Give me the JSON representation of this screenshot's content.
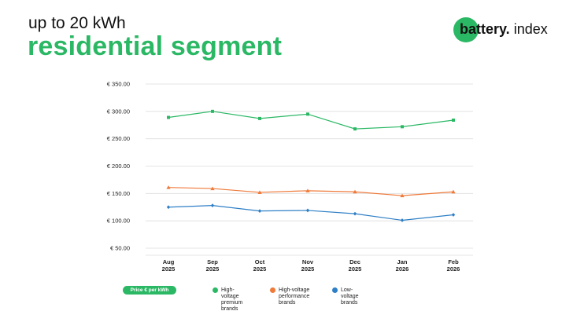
{
  "header": {
    "subtitle": "up to 20 kWh",
    "title": "residential segment"
  },
  "logo": {
    "brand_bold": "battery.",
    "brand_rest": " index"
  },
  "colors": {
    "accent": "#2bb865",
    "premium": "#2bb865",
    "performance": "#ef7a3a",
    "low": "#2e7fc6",
    "grid": "#dddddd"
  },
  "chart_data": {
    "type": "line",
    "categories": [
      "Aug\n2025",
      "Sep\n2025",
      "Oct\n2025",
      "Nov\n2025",
      "Dec\n2025",
      "Jan\n2026",
      "Feb\n2026"
    ],
    "y_ticks": [
      "€ 50.00",
      "€ 100.00",
      "€ 150.00",
      "€ 200.00",
      "€ 250.00",
      "€ 300.00",
      "€ 350.00"
    ],
    "y_tick_values": [
      50,
      100,
      150,
      200,
      250,
      300,
      350
    ],
    "ylim": [
      50,
      350
    ],
    "grid": true,
    "series": [
      {
        "name": "High-voltage premium brands",
        "label": "High-voltage\npremium brands",
        "marker": "square",
        "values": [
          289,
          300,
          287,
          295,
          268,
          272,
          284
        ]
      },
      {
        "name": "High-voltage performance brands",
        "label": "High-voltage\nperformance brands",
        "marker": "triangle",
        "values": [
          161,
          159,
          152,
          155,
          153,
          146,
          153
        ]
      },
      {
        "name": "Low-voltage brands",
        "label": "Low-voltage brands",
        "marker": "diamond",
        "values": [
          125,
          128,
          118,
          119,
          113,
          101,
          111
        ]
      }
    ],
    "legend_title": "Price € per kWh",
    "legend_position": "bottom"
  }
}
